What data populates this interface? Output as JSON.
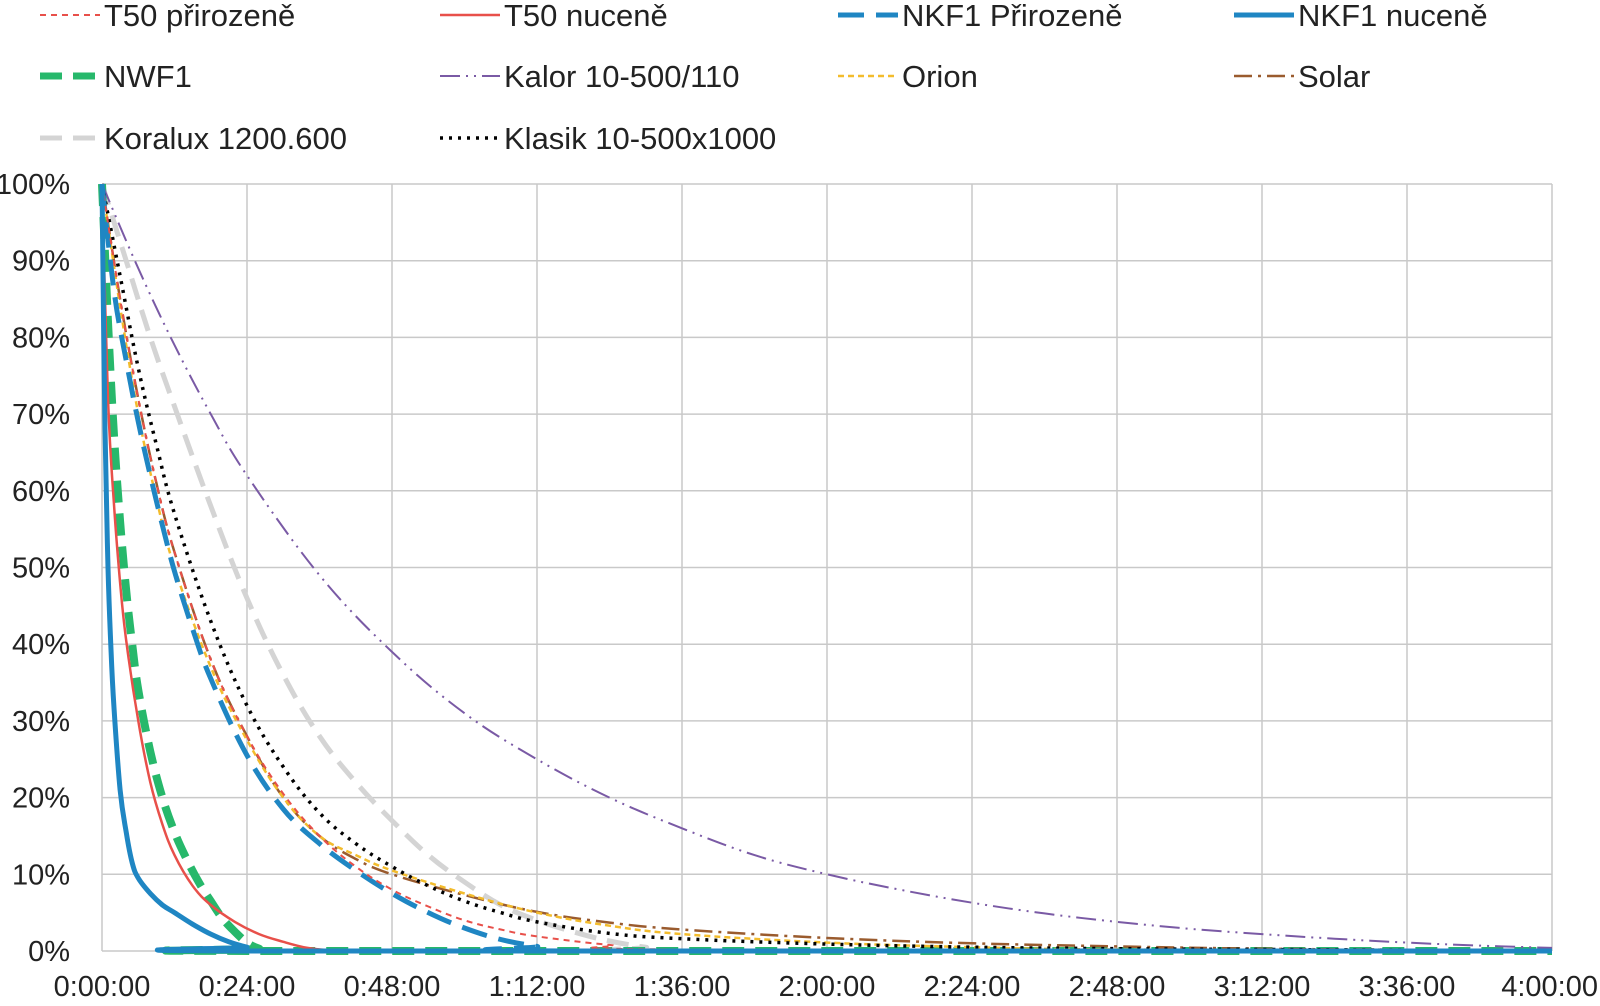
{
  "chart_data": {
    "type": "line",
    "title": "",
    "xlabel": "",
    "ylabel": "",
    "x_unit": "minutes",
    "xlim": [
      0,
      240
    ],
    "ylim": [
      0,
      100
    ],
    "x_ticks": [
      {
        "value": 0,
        "label": "0:00:00"
      },
      {
        "value": 24,
        "label": "0:24:00"
      },
      {
        "value": 48,
        "label": "0:48:00"
      },
      {
        "value": 72,
        "label": "1:12:00"
      },
      {
        "value": 96,
        "label": "1:36:00"
      },
      {
        "value": 120,
        "label": "2:00:00"
      },
      {
        "value": 144,
        "label": "2:24:00"
      },
      {
        "value": 168,
        "label": "2:48:00"
      },
      {
        "value": 192,
        "label": "3:12:00"
      },
      {
        "value": 216,
        "label": "3:36:00"
      },
      {
        "value": 240,
        "label": "4:00:00"
      }
    ],
    "y_ticks": [
      {
        "value": 0,
        "label": "0%"
      },
      {
        "value": 10,
        "label": "10%"
      },
      {
        "value": 20,
        "label": "20%"
      },
      {
        "value": 30,
        "label": "30%"
      },
      {
        "value": 40,
        "label": "40%"
      },
      {
        "value": 50,
        "label": "50%"
      },
      {
        "value": 60,
        "label": "60%"
      },
      {
        "value": 70,
        "label": "70%"
      },
      {
        "value": 80,
        "label": "80%"
      },
      {
        "value": 90,
        "label": "90%"
      },
      {
        "value": 100,
        "label": "100%"
      }
    ],
    "grid": true,
    "legend_position": "top",
    "series": [
      {
        "name": "T50 přirozeně",
        "color": "#e8504a",
        "dash": "6 5",
        "width": 2,
        "x": [
          0,
          3,
          6,
          9,
          12,
          18,
          24,
          30,
          36,
          42,
          48,
          54,
          60,
          66,
          72,
          84,
          96,
          240
        ],
        "y": [
          100,
          85,
          72,
          61,
          52,
          38,
          28,
          20.5,
          15,
          11,
          8,
          5.8,
          4,
          2.8,
          1.9,
          0.8,
          0.2,
          0
        ]
      },
      {
        "name": "T50 nuceně",
        "color": "#e8504a",
        "dash": "",
        "width": 2.5,
        "x": [
          0,
          1,
          2,
          3,
          4,
          6,
          8,
          10,
          12,
          15,
          18,
          22,
          26,
          30,
          34,
          38,
          42,
          240
        ],
        "y": [
          100,
          72,
          58,
          48,
          40.5,
          30,
          22,
          16.5,
          12.5,
          8.5,
          6,
          3.8,
          2.2,
          1.2,
          0.4,
          0.1,
          0,
          0
        ]
      },
      {
        "name": "NKF1 Přirozeně",
        "color": "#1f86c3",
        "dash": "26 12",
        "width": 5,
        "x": [
          0,
          2,
          4,
          6,
          8,
          10,
          12,
          15,
          18,
          24,
          30,
          36,
          42,
          48,
          54,
          60,
          66,
          72,
          78,
          240
        ],
        "y": [
          100,
          86,
          77,
          69,
          62,
          55.5,
          49.5,
          42,
          35.5,
          25.5,
          18.5,
          14,
          10.5,
          7.5,
          5,
          3,
          1.5,
          0.6,
          0,
          0
        ]
      },
      {
        "name": "NKF1 nuceně",
        "color": "#1f86c3",
        "dash": "",
        "width": 5,
        "x": [
          0,
          0.5,
          1,
          1.5,
          2,
          3,
          4,
          5,
          6,
          8,
          10,
          12,
          15,
          18,
          21,
          24,
          27,
          240
        ],
        "y": [
          100,
          68,
          50,
          39,
          31.5,
          21,
          15.5,
          11.5,
          9.5,
          7.5,
          6,
          5,
          3.5,
          2.2,
          1.2,
          0.5,
          0,
          0
        ]
      },
      {
        "name": "NWF1",
        "color": "#27b86b",
        "dash": "22 11",
        "width": 8,
        "x": [
          0,
          1,
          2,
          3,
          4,
          5,
          6,
          8,
          10,
          12,
          14,
          16,
          18,
          20,
          22,
          24,
          26,
          28,
          240
        ],
        "y": [
          100,
          82,
          67,
          56,
          47,
          40,
          34,
          26,
          20,
          15.5,
          12,
          9,
          6.5,
          4.2,
          2.5,
          1.1,
          0.3,
          0,
          0
        ]
      },
      {
        "name": "Kalor 10-500/110",
        "color": "#7a5aa5",
        "dash": "20 6 2 6 2 6",
        "width": 2,
        "x": [
          0,
          6,
          12,
          18,
          24,
          36,
          48,
          60,
          72,
          84,
          96,
          108,
          120,
          132,
          144,
          156,
          168,
          180,
          192,
          204,
          216,
          228,
          240
        ],
        "y": [
          100,
          89,
          79,
          70,
          62,
          49,
          39,
          31,
          25,
          20,
          16,
          12.5,
          10,
          8,
          6.3,
          4.9,
          3.8,
          2.9,
          2.2,
          1.6,
          1.1,
          0.7,
          0.4
        ]
      },
      {
        "name": "Orion",
        "color": "#f3bc2c",
        "dash": "6 4",
        "width": 2.5,
        "x": [
          0,
          3,
          6,
          9,
          12,
          18,
          24,
          30,
          36,
          42,
          48,
          60,
          72,
          84,
          96,
          120,
          144,
          168,
          240
        ],
        "y": [
          100,
          84,
          70,
          59,
          50,
          37,
          27.5,
          20,
          15,
          12.5,
          10.5,
          7.5,
          5,
          3.3,
          2.2,
          1.1,
          0.5,
          0.2,
          0
        ]
      },
      {
        "name": "Solar",
        "color": "#9a5b2e",
        "dash": "18 6 3 6",
        "width": 2.5,
        "x": [
          0,
          3,
          6,
          9,
          12,
          18,
          24,
          30,
          36,
          42,
          48,
          60,
          72,
          84,
          96,
          120,
          144,
          168,
          192,
          216,
          240
        ],
        "y": [
          100,
          85,
          72,
          61,
          52,
          38,
          28,
          20,
          15,
          12,
          10,
          7.3,
          5.1,
          3.7,
          2.8,
          1.7,
          1,
          0.6,
          0.3,
          0.15,
          0
        ]
      },
      {
        "name": "Koralux 1200.600",
        "color": "#d4d4d4",
        "dash": "22 11",
        "width": 5,
        "x": [
          0,
          4,
          8,
          12,
          18,
          24,
          30,
          36,
          42,
          48,
          54,
          60,
          66,
          72,
          78,
          84,
          90,
          96,
          240
        ],
        "y": [
          100,
          90,
          80,
          71,
          58,
          46,
          36,
          28,
          22,
          17,
          12.5,
          9,
          6,
          4,
          2.5,
          1.3,
          0.5,
          0,
          0
        ]
      },
      {
        "name": "Klasik 10-500x1000",
        "color": "#000000",
        "dash": "3 6",
        "width": 3.5,
        "x": [
          0,
          3,
          6,
          9,
          12,
          18,
          24,
          30,
          36,
          42,
          48,
          54,
          60,
          66,
          72,
          84,
          96,
          120,
          144,
          168,
          192,
          216,
          240
        ],
        "y": [
          100,
          88,
          76,
          66,
          57,
          43,
          32,
          24,
          18,
          14,
          11,
          8.5,
          6.5,
          5,
          3.8,
          2.3,
          1.6,
          0.9,
          0.5,
          0.3,
          0.2,
          0.1,
          0
        ]
      }
    ]
  }
}
